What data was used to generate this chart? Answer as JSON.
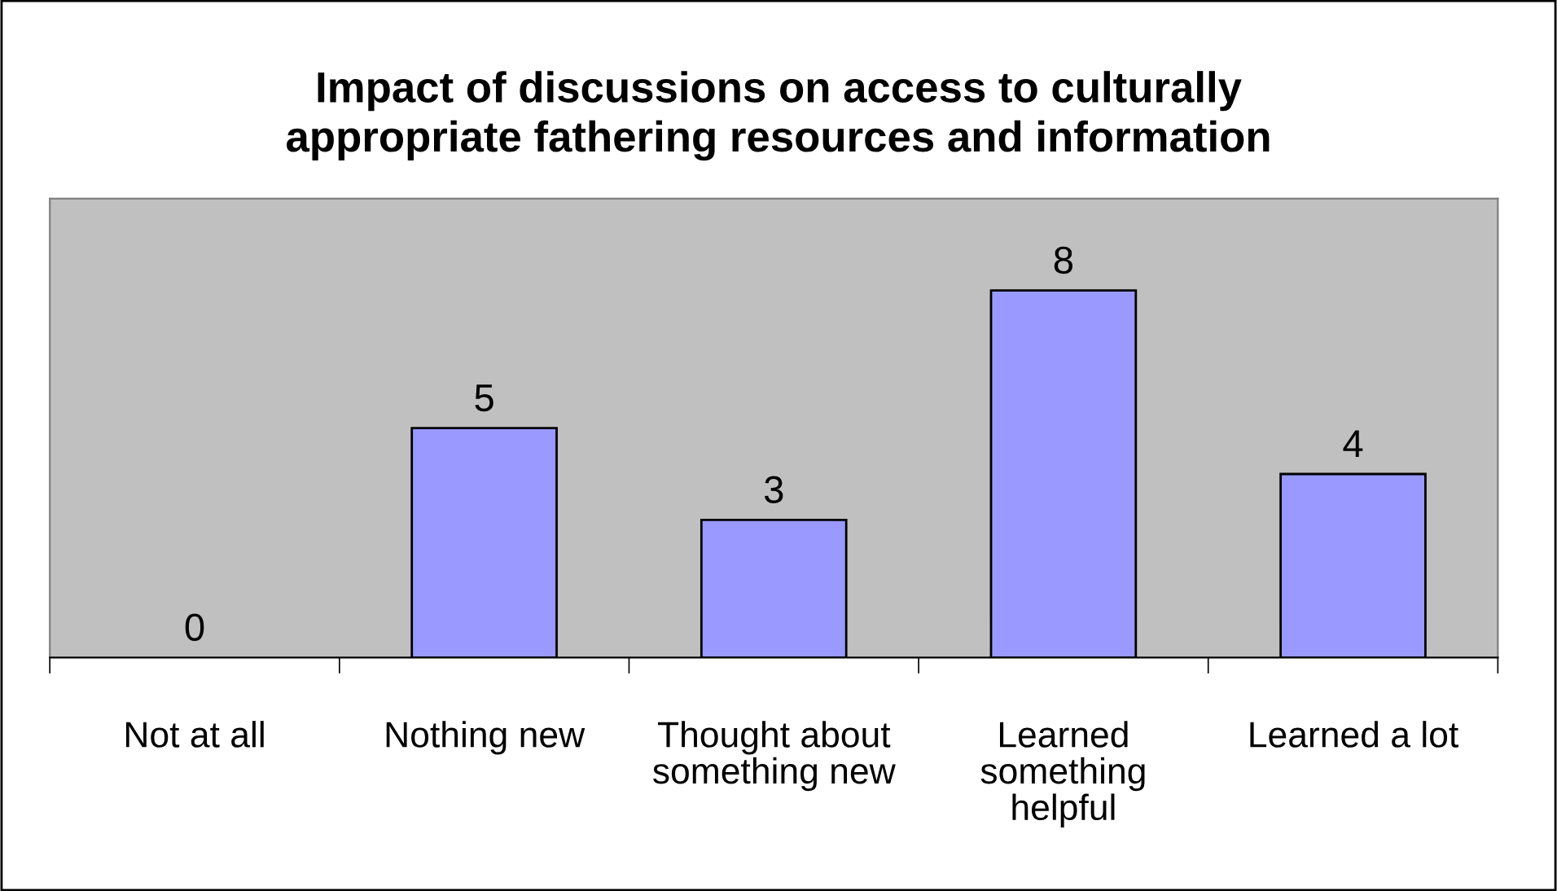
{
  "chart_data": {
    "type": "bar",
    "title": "Impact of discussions on access to culturally\nappropriate fathering resources and information",
    "categories": [
      "Not at all",
      "Nothing new",
      "Thought about\nsomething new",
      "Learned\nsomething\nhelpful",
      "Learned a lot"
    ],
    "values": [
      0,
      5,
      3,
      8,
      4
    ],
    "color": "#9999ff",
    "ylim": [
      0,
      10
    ],
    "data_labels": true,
    "grid": false,
    "legend": false,
    "tick_labels": "x"
  }
}
